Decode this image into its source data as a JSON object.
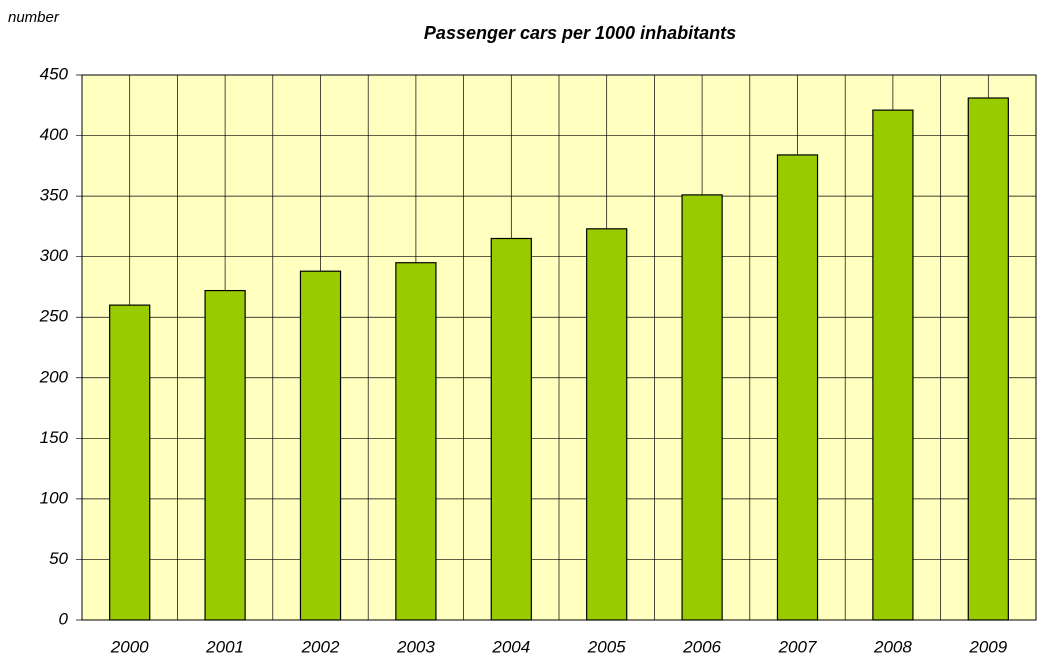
{
  "chart_data": {
    "type": "bar",
    "title": "Passenger cars per 1000 inhabitants",
    "y_label": "number",
    "categories": [
      "2000",
      "2001",
      "2002",
      "2003",
      "2004",
      "2005",
      "2006",
      "2007",
      "2008",
      "2009"
    ],
    "values": [
      260,
      272,
      288,
      295,
      315,
      323,
      351,
      384,
      421,
      431
    ],
    "color": "#99cc00",
    "ylim": [
      0,
      450
    ],
    "yticks": [
      0,
      50,
      100,
      150,
      200,
      250,
      300,
      350,
      400,
      450
    ],
    "grid": true
  }
}
